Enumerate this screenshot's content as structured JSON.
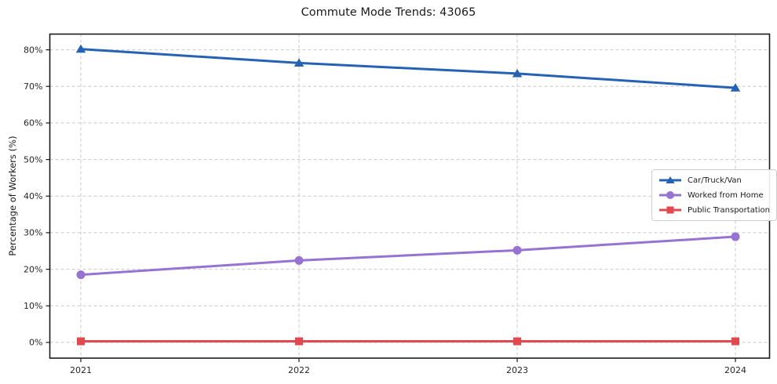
{
  "chart_data": {
    "type": "line",
    "title": "Commute Mode Trends: 43065",
    "xlabel": "",
    "ylabel": "Percentage of Workers (%)",
    "categories": [
      "2021",
      "2022",
      "2023",
      "2024"
    ],
    "y_ticks": [
      0,
      10,
      20,
      30,
      40,
      50,
      60,
      70,
      80
    ],
    "y_tick_suffix": "%",
    "ylim": [
      -4.3,
      84.3
    ],
    "grid": true,
    "grid_color": "#c8c8c8",
    "axis_color": "#1a1a1a",
    "legend_position": "center right",
    "series": [
      {
        "name": "Car/Truck/Van",
        "color": "#2463b4",
        "marker": "triangle",
        "values": [
          80.2,
          76.4,
          73.5,
          69.6
        ]
      },
      {
        "name": "Worked from Home",
        "color": "#9673d2",
        "marker": "circle",
        "values": [
          18.5,
          22.4,
          25.2,
          28.9
        ]
      },
      {
        "name": "Public Transportation",
        "color": "#e2484d",
        "marker": "square",
        "values": [
          0.3,
          0.3,
          0.3,
          0.3
        ]
      }
    ]
  }
}
